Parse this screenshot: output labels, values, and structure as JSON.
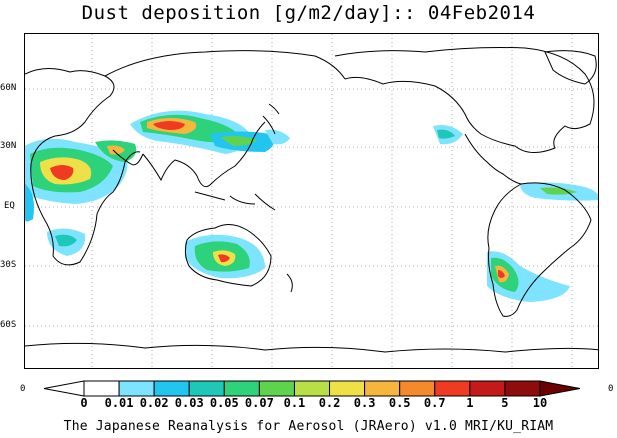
{
  "title": "Dust deposition [g/m2/day]:: 04Feb2014",
  "footer": "The Japanese Reanalysis for Aerosol (JRAero) v1.0 MRI/KU_RIAM",
  "lat_labels": [
    "60N",
    "30N",
    "EQ",
    "30S",
    "60S"
  ],
  "side_labels": {
    "left": "0",
    "right": "0"
  },
  "colorbar": {
    "levels": [
      "0",
      "0.01",
      "0.02",
      "0.03",
      "0.05",
      "0.07",
      "0.1",
      "0.2",
      "0.3",
      "0.5",
      "0.7",
      "1",
      "5",
      "10"
    ],
    "colors": [
      "#ffffff",
      "#ffffff",
      "#7ee3ff",
      "#22c5f0",
      "#1ec7b8",
      "#2ed27a",
      "#5fd34e",
      "#b8e046",
      "#f0e048",
      "#f6b53c",
      "#f48a2c",
      "#ee3b22",
      "#c51a1a",
      "#8e0c0c",
      "#6a0000"
    ]
  },
  "map": {
    "projection": "Equidistant cylindrical, centered near 150E",
    "dust_sources": [
      "Sahara / North Africa",
      "Arabian Peninsula",
      "Taklimakan / Gobi",
      "Central Australia",
      "Patagonia",
      "Northern South America"
    ]
  }
}
